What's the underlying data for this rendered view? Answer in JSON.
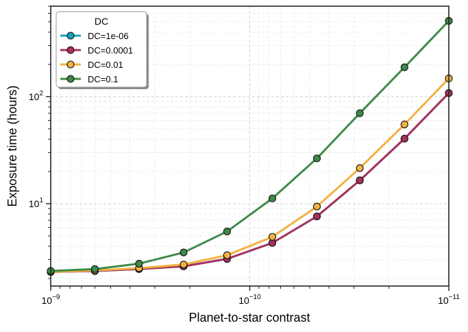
{
  "chart_data": {
    "type": "line",
    "xlabel": "Planet-to-star contrast",
    "ylabel": "Exposure time (hours)",
    "xscale": "log",
    "yscale": "log",
    "x_inverted": true,
    "xlim": [
      1e-09,
      1e-11
    ],
    "ylim": [
      1.7,
      700
    ],
    "grid": true,
    "legend": {
      "title": "DC",
      "placement": "top-left"
    },
    "x_ticks": [
      {
        "value": 1e-09,
        "base": "10",
        "exp": "−9"
      },
      {
        "value": 1e-10,
        "base": "10",
        "exp": "−10"
      },
      {
        "value": 1e-11,
        "base": "10",
        "exp": "−11"
      }
    ],
    "y_ticks": [
      {
        "value": 10,
        "base": "10",
        "exp": "1"
      },
      {
        "value": 100,
        "base": "10",
        "exp": "2"
      }
    ],
    "x": [
      1e-09,
      6e-10,
      3.6e-10,
      2.15e-10,
      1.3e-10,
      7.7e-11,
      4.6e-11,
      2.8e-11,
      1.67e-11,
      1e-11
    ],
    "series": [
      {
        "name": "DC=1e-06",
        "color": "#17a2b8",
        "values": [
          2.3,
          2.35,
          2.45,
          2.6,
          3.05,
          4.3,
          7.6,
          16.5,
          40.5,
          108
        ]
      },
      {
        "name": "DC=0.0001",
        "color": "#a8305f",
        "values": [
          2.3,
          2.35,
          2.45,
          2.6,
          3.05,
          4.3,
          7.6,
          16.5,
          40.5,
          108
        ]
      },
      {
        "name": "DC=0.01",
        "color": "#f2b142",
        "values": [
          2.3,
          2.38,
          2.5,
          2.7,
          3.3,
          4.9,
          9.4,
          21.5,
          55,
          148
        ]
      },
      {
        "name": "DC=0.1",
        "color": "#3f8a4a",
        "values": [
          2.35,
          2.45,
          2.75,
          3.5,
          5.5,
          11.2,
          26.5,
          70,
          188,
          510
        ]
      }
    ]
  }
}
